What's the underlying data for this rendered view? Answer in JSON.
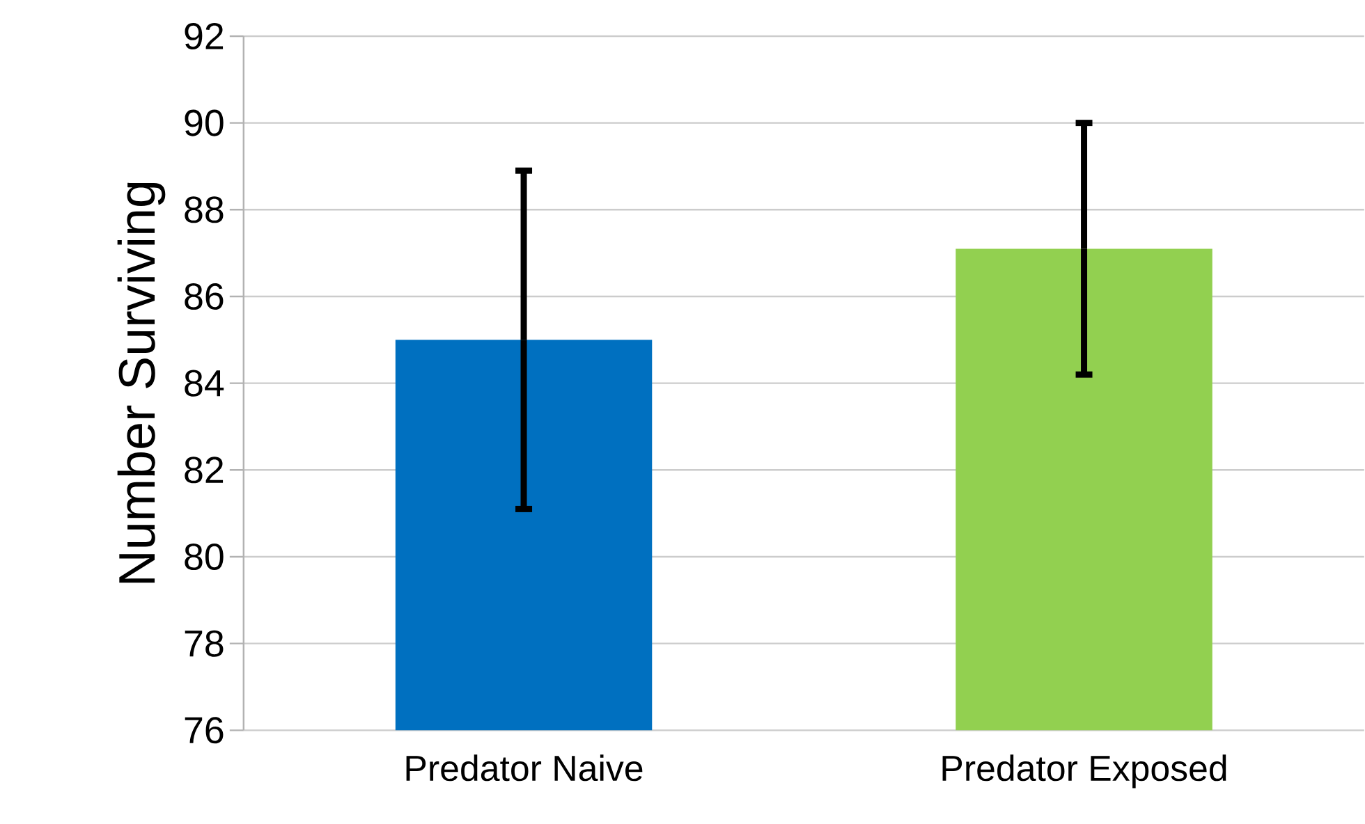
{
  "chart_data": {
    "type": "bar",
    "ylabel": "Number  Surviving",
    "categories": [
      "Predator Naive",
      "Predator Exposed"
    ],
    "values": [
      85,
      87.1
    ],
    "colors": [
      "#0070c0",
      "#92d050"
    ],
    "errors": [
      3.9,
      2.9
    ],
    "ylim": [
      76,
      92
    ],
    "yticks": [
      76,
      78,
      80,
      82,
      84,
      86,
      88,
      90,
      92
    ],
    "grid": "y"
  }
}
